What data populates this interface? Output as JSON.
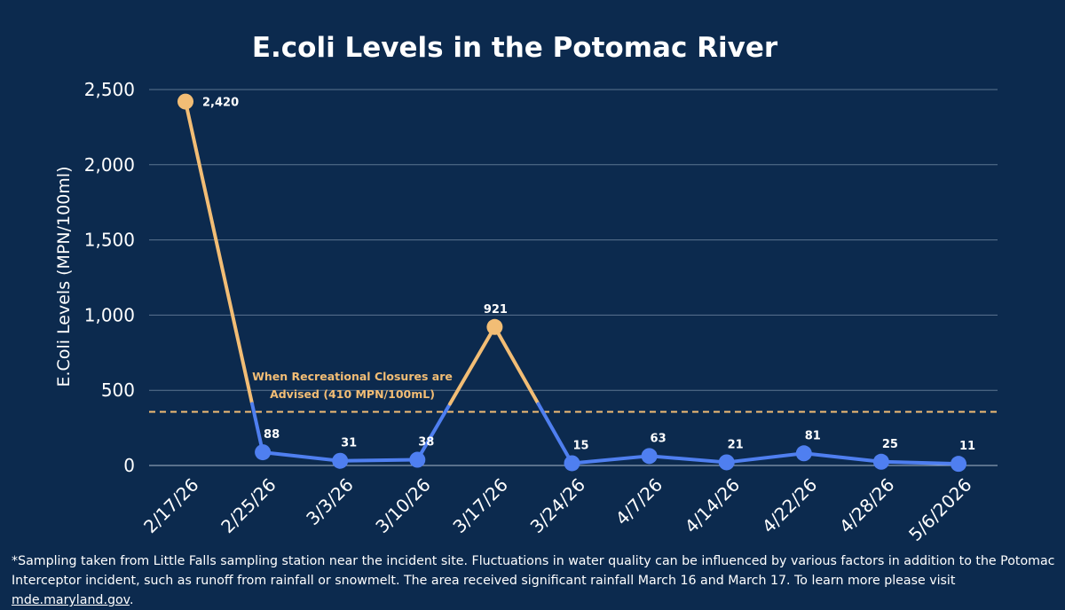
{
  "chart_data": {
    "type": "line",
    "title": "E.coli Levels in the Potomac River",
    "ylabel": "E.Coli Levels (MPN/100ml)",
    "xlabel": "",
    "ylim": [
      0,
      2500
    ],
    "yticks": [
      0,
      500,
      1000,
      1500,
      2000,
      2500
    ],
    "ytick_labels": [
      "0",
      "500",
      "1,000",
      "1,500",
      "2,000",
      "2,500"
    ],
    "categories": [
      "2/17/26",
      "2/25/26",
      "3/3/26",
      "3/10/26",
      "3/17/26",
      "3/24/26",
      "4/7/26",
      "4/14/26",
      "4/22/26",
      "4/28/26",
      "5/6/2026"
    ],
    "values": [
      2420,
      88,
      31,
      38,
      921,
      15,
      63,
      21,
      81,
      25,
      11
    ],
    "value_labels": [
      "2,420",
      "88",
      "31",
      "38",
      "921",
      "15",
      "63",
      "21",
      "81",
      "25",
      "11"
    ],
    "threshold": {
      "value": 410,
      "label_line1": "When Recreational Closures are",
      "label_line2": "Advised (410 MPN/100mL)",
      "color": "#f2bd75"
    },
    "grid": true,
    "legend": "none",
    "colors": {
      "background": "#0c2a4e",
      "below_threshold": "#4f7ff0",
      "above_threshold": "#f2bd75",
      "gridline": "#5b7490",
      "text": "#ffffff"
    }
  },
  "footnote": {
    "text": "*Sampling taken from Little Falls sampling station near the incident site.  Fluctuations in water quality can be influenced by various factors in addition to the Potomac Interceptor incident, such as runoff from rainfall or snowmelt. The area received significant rainfall March 16 and March 17. To learn more please visit ",
    "link_text": "mde.maryland.gov",
    "end": "."
  }
}
